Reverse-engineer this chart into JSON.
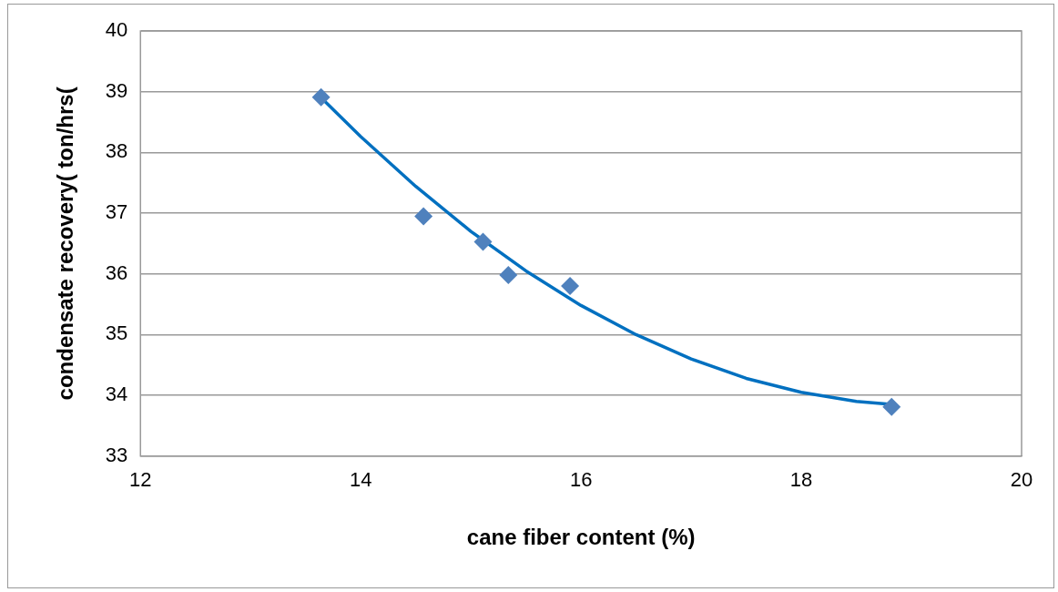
{
  "chart_data": {
    "type": "scatter",
    "xlabel": "cane fiber content (%)",
    "ylabel": "condensate recovery( ton/hrs(",
    "xlim": [
      12,
      20
    ],
    "xticks": [
      12,
      14,
      16,
      18,
      20
    ],
    "ylim": [
      33,
      40
    ],
    "yticks": [
      33,
      34,
      35,
      36,
      37,
      38,
      39,
      40
    ],
    "grid": "y",
    "legend": false,
    "marker": "diamond",
    "series": [
      {
        "type": "scatter",
        "color": "#4f81bd",
        "x": [
          13.64,
          14.57,
          15.11,
          15.34,
          15.9,
          18.82
        ],
        "values": [
          38.91,
          36.95,
          36.53,
          35.98,
          35.8,
          33.81
        ]
      },
      {
        "type": "line",
        "color": "#0070c0",
        "marker": "none",
        "line_style": "solid",
        "x": [
          13.64,
          14,
          14.5,
          15,
          15.5,
          16,
          16.5,
          17,
          17.5,
          18,
          18.5,
          18.82
        ],
        "values": [
          38.9,
          38.26,
          37.44,
          36.7,
          36.05,
          35.48,
          35.0,
          34.6,
          34.28,
          34.05,
          33.9,
          33.85
        ]
      }
    ]
  }
}
